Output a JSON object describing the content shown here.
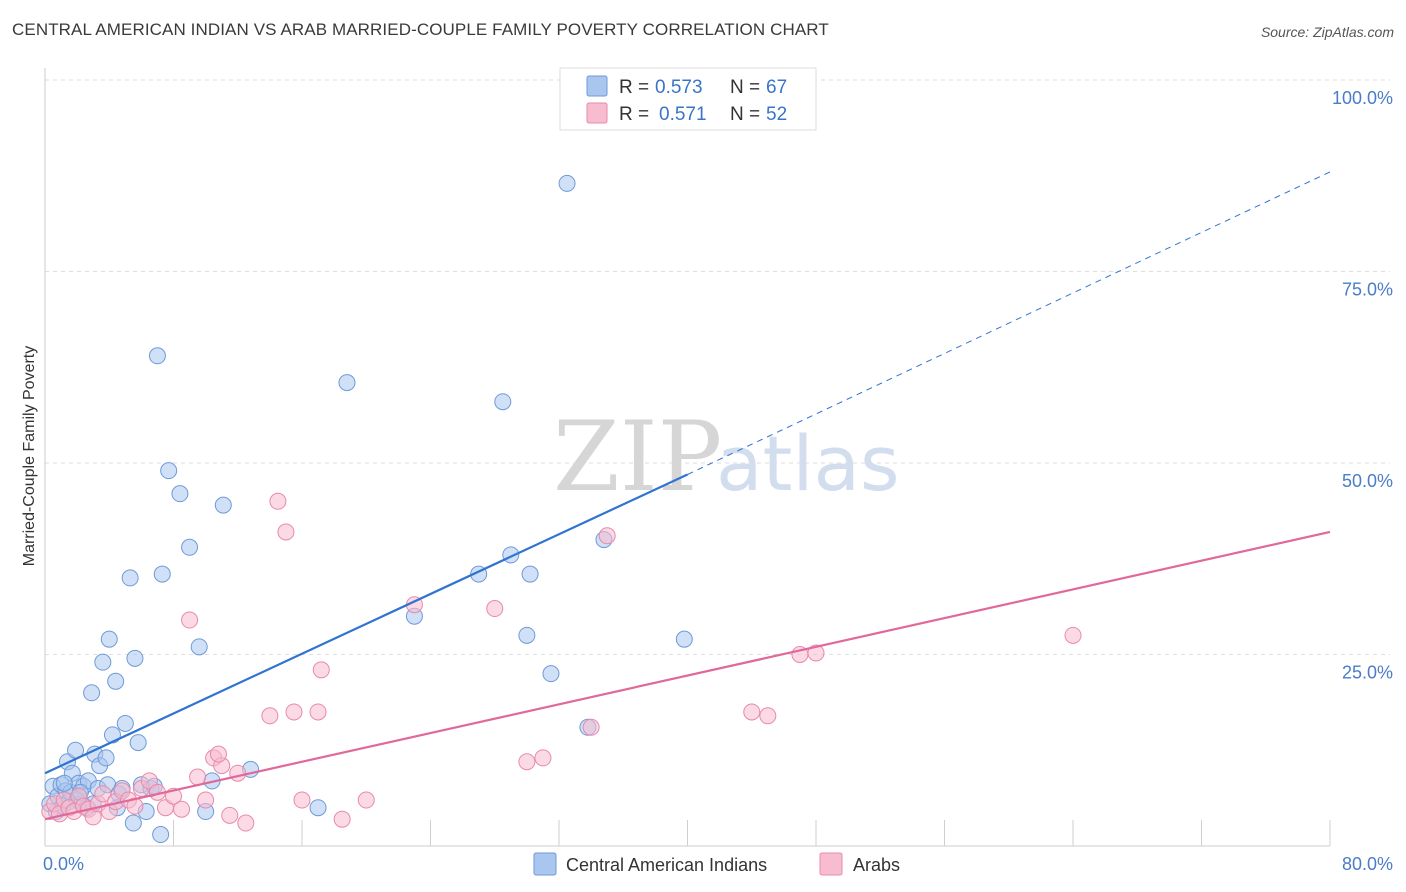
{
  "title": "CENTRAL AMERICAN INDIAN VS ARAB MARRIED-COUPLE FAMILY POVERTY CORRELATION CHART",
  "source": "Source: ZipAtlas.com",
  "watermark": {
    "part1": "ZIP",
    "part2": "atlas"
  },
  "legend": {
    "rows": [
      {
        "r_label": "R =",
        "r_value": "0.573",
        "n_label": "N =",
        "n_value": "67",
        "color": "#a9c6ee",
        "stroke": "#6f9ad8"
      },
      {
        "r_label": "R =",
        "r_value": "0.571",
        "n_label": "N =",
        "n_value": "52",
        "color": "#f7bccf",
        "stroke": "#e88aa8"
      }
    ]
  },
  "bottom_legend": [
    {
      "label": "Central American Indians",
      "color": "#a9c6ee",
      "stroke": "#6f9ad8"
    },
    {
      "label": "Arabs",
      "color": "#f7bccf",
      "stroke": "#e88aa8"
    }
  ],
  "chart_data": {
    "type": "scatter",
    "title": "CENTRAL AMERICAN INDIAN VS ARAB MARRIED-COUPLE FAMILY POVERTY CORRELATION CHART",
    "xlabel": "",
    "ylabel": "Married-Couple Family Poverty",
    "xlim": [
      0,
      80
    ],
    "ylim": [
      0,
      100
    ],
    "x_ticks": [
      {
        "value": 0,
        "label": "0.0%"
      },
      {
        "value": 80,
        "label": "80.0%"
      }
    ],
    "y_ticks": [
      {
        "value": 25,
        "label": "25.0%"
      },
      {
        "value": 50,
        "label": "50.0%"
      },
      {
        "value": 75,
        "label": "75.0%"
      },
      {
        "value": 100,
        "label": "100.0%"
      }
    ],
    "grid": true,
    "series": [
      {
        "name": "Central American Indians",
        "color": "#a9c6ee",
        "stroke": "#6f9ad8",
        "line_color": "#2f74d0",
        "trend": {
          "x0": 0,
          "y0": 9.5,
          "x1": 40,
          "y1": 48.5,
          "dashed_to_x": 80,
          "dashed_to_y": 88
        },
        "points": [
          [
            0.3,
            5.5
          ],
          [
            0.5,
            7.8
          ],
          [
            0.7,
            4.5
          ],
          [
            0.8,
            6.5
          ],
          [
            1.0,
            8.0
          ],
          [
            1.1,
            5.2
          ],
          [
            1.3,
            7.2
          ],
          [
            1.4,
            11.0
          ],
          [
            1.5,
            5.8
          ],
          [
            1.6,
            7.0
          ],
          [
            1.7,
            9.5
          ],
          [
            1.9,
            12.5
          ],
          [
            2.0,
            6.0
          ],
          [
            2.1,
            8.2
          ],
          [
            2.3,
            5.5
          ],
          [
            2.4,
            7.8
          ],
          [
            2.6,
            5.0
          ],
          [
            2.7,
            8.5
          ],
          [
            2.9,
            20.0
          ],
          [
            3.1,
            12.0
          ],
          [
            3.3,
            7.5
          ],
          [
            3.4,
            10.5
          ],
          [
            3.6,
            24.0
          ],
          [
            3.8,
            11.5
          ],
          [
            3.9,
            8.0
          ],
          [
            4.0,
            27.0
          ],
          [
            4.2,
            14.5
          ],
          [
            4.4,
            21.5
          ],
          [
            4.6,
            6.8
          ],
          [
            4.8,
            7.5
          ],
          [
            5.0,
            16.0
          ],
          [
            5.3,
            35.0
          ],
          [
            5.6,
            24.5
          ],
          [
            5.8,
            13.5
          ],
          [
            6.0,
            8.0
          ],
          [
            6.3,
            4.5
          ],
          [
            6.6,
            7.5
          ],
          [
            7.0,
            64.0
          ],
          [
            7.3,
            35.5
          ],
          [
            7.7,
            49.0
          ],
          [
            8.4,
            46.0
          ],
          [
            9.0,
            39.0
          ],
          [
            9.6,
            26.0
          ],
          [
            10.4,
            8.5
          ],
          [
            11.1,
            44.5
          ],
          [
            12.8,
            10.0
          ],
          [
            17.0,
            5.0
          ],
          [
            18.8,
            60.5
          ],
          [
            23.0,
            30.0
          ],
          [
            27.0,
            35.5
          ],
          [
            28.5,
            58.0
          ],
          [
            29.0,
            38.0
          ],
          [
            30.0,
            27.5
          ],
          [
            30.2,
            35.5
          ],
          [
            31.5,
            22.5
          ],
          [
            32.5,
            86.5
          ],
          [
            33.8,
            15.5
          ],
          [
            34.8,
            40.0
          ],
          [
            39.8,
            27.0
          ],
          [
            7.2,
            1.5
          ],
          [
            2.2,
            7.0
          ],
          [
            1.2,
            8.2
          ],
          [
            3.0,
            5.5
          ],
          [
            4.5,
            5.0
          ],
          [
            5.5,
            3.0
          ],
          [
            6.8,
            7.8
          ],
          [
            10.0,
            4.5
          ]
        ]
      },
      {
        "name": "Arabs",
        "color": "#f7bccf",
        "stroke": "#e88aa8",
        "line_color": "#e0699a",
        "trend": {
          "x0": 0,
          "y0": 3.5,
          "x1": 80,
          "y1": 41
        },
        "points": [
          [
            0.3,
            4.5
          ],
          [
            0.6,
            5.5
          ],
          [
            0.9,
            4.2
          ],
          [
            1.2,
            6.0
          ],
          [
            1.5,
            5.0
          ],
          [
            1.8,
            4.5
          ],
          [
            2.1,
            6.5
          ],
          [
            2.4,
            5.2
          ],
          [
            2.7,
            4.8
          ],
          [
            3.0,
            3.8
          ],
          [
            3.3,
            5.5
          ],
          [
            3.6,
            6.8
          ],
          [
            4.0,
            4.5
          ],
          [
            4.4,
            5.8
          ],
          [
            4.8,
            7.2
          ],
          [
            5.2,
            6.0
          ],
          [
            5.6,
            5.2
          ],
          [
            6.0,
            7.5
          ],
          [
            6.5,
            8.5
          ],
          [
            7.0,
            7.0
          ],
          [
            7.5,
            5.0
          ],
          [
            8.0,
            6.5
          ],
          [
            8.5,
            4.8
          ],
          [
            9.0,
            29.5
          ],
          [
            9.5,
            9.0
          ],
          [
            10.0,
            6.0
          ],
          [
            10.5,
            11.5
          ],
          [
            11.0,
            10.5
          ],
          [
            11.5,
            4.0
          ],
          [
            12.0,
            9.5
          ],
          [
            12.5,
            3.0
          ],
          [
            14.0,
            17.0
          ],
          [
            14.5,
            45.0
          ],
          [
            15.0,
            41.0
          ],
          [
            15.5,
            17.5
          ],
          [
            16.0,
            6.0
          ],
          [
            17.0,
            17.5
          ],
          [
            17.2,
            23.0
          ],
          [
            18.5,
            3.5
          ],
          [
            20.0,
            6.0
          ],
          [
            23.0,
            31.5
          ],
          [
            28.0,
            31.0
          ],
          [
            30.0,
            11.0
          ],
          [
            31.0,
            11.5
          ],
          [
            34.0,
            15.5
          ],
          [
            35.0,
            40.5
          ],
          [
            44.0,
            17.5
          ],
          [
            45.0,
            17.0
          ],
          [
            47.0,
            25.0
          ],
          [
            48.0,
            25.2
          ],
          [
            64.0,
            27.5
          ],
          [
            10.8,
            12.0
          ]
        ]
      }
    ]
  }
}
